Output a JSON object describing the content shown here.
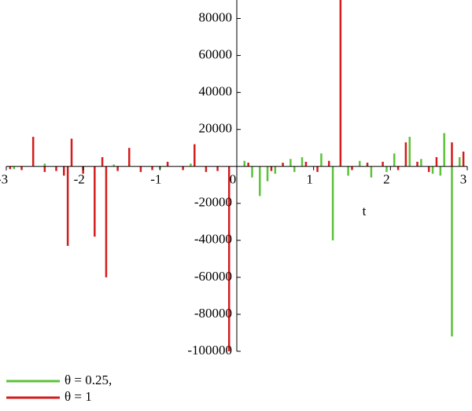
{
  "chart_data": {
    "type": "stem",
    "x_label": "t",
    "xlim": [
      -3,
      3
    ],
    "xticks": [
      -3,
      -2,
      -1,
      0,
      1,
      2,
      3
    ],
    "ylim": [
      -100000,
      90000
    ],
    "yticks": [
      -100000,
      -80000,
      -60000,
      -40000,
      -20000,
      20000,
      40000,
      60000,
      80000
    ],
    "series": [
      {
        "name": "θ = 0.25,",
        "color": "#5cc23a",
        "x": [
          -2.9,
          -2.5,
          -2.0,
          -1.6,
          -1.0,
          -0.6,
          0.1,
          0.2,
          0.3,
          0.4,
          0.5,
          0.7,
          0.75,
          0.85,
          1.1,
          1.25,
          1.45,
          1.6,
          1.75,
          1.95,
          2.05,
          2.25,
          2.4,
          2.55,
          2.65,
          2.7,
          2.8,
          2.9
        ],
        "values": [
          -1500,
          1500,
          -2000,
          1000,
          -1500,
          1500,
          3000,
          -6000,
          -16000,
          -8000,
          -4000,
          4000,
          -3000,
          5000,
          7000,
          -40000,
          -5000,
          3000,
          -6000,
          -3000,
          7000,
          16000,
          4000,
          -4000,
          -5000,
          18000,
          -92000,
          5000
        ]
      },
      {
        "name": "θ = 1",
        "color": "#d41c1c",
        "x": [
          -2.95,
          -2.8,
          -2.65,
          -2.5,
          -2.35,
          -2.25,
          -2.2,
          -2.15,
          -2.0,
          -1.85,
          -1.75,
          -1.7,
          -1.55,
          -1.4,
          -1.25,
          -1.1,
          -0.9,
          -0.7,
          -0.55,
          -0.4,
          -0.25,
          -0.1,
          0.15,
          0.45,
          0.6,
          0.9,
          1.05,
          1.2,
          1.35,
          1.5,
          1.7,
          1.9,
          2.1,
          2.2,
          2.35,
          2.5,
          2.6,
          2.8,
          2.95
        ],
        "values": [
          -1500,
          -2000,
          16000,
          -3000,
          -2500,
          -5000,
          -43000,
          15000,
          -4000,
          -38000,
          5000,
          -60000,
          -2500,
          10000,
          -3000,
          -2000,
          2500,
          -2000,
          12000,
          -3000,
          -2500,
          -100000,
          2000,
          -2500,
          2000,
          2500,
          -3000,
          3000,
          90000,
          -2000,
          2000,
          2500,
          -2000,
          13000,
          2500,
          -3000,
          5000,
          13000,
          8000
        ]
      }
    ],
    "legend": "bottom-left"
  }
}
